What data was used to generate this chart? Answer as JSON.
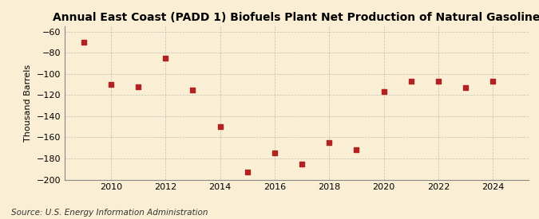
{
  "title": "Annual East Coast (PADD 1) Biofuels Plant Net Production of Natural Gasoline",
  "ylabel": "Thousand Barrels",
  "source": "Source: U.S. Energy Information Administration",
  "years": [
    2009,
    2010,
    2011,
    2012,
    2013,
    2014,
    2015,
    2016,
    2017,
    2018,
    2019,
    2020,
    2021,
    2022,
    2023,
    2024
  ],
  "values": [
    -70,
    -110,
    -112,
    -85,
    -115,
    -150,
    -193,
    -175,
    -185,
    -165,
    -172,
    -117,
    -107,
    -107,
    -113,
    -107
  ],
  "marker_color": "#b22222",
  "marker_size": 4,
  "background_color": "#faefd4",
  "grid_color": "#aaaaaa",
  "ylim": [
    -200,
    -55
  ],
  "yticks": [
    -200,
    -180,
    -160,
    -140,
    -120,
    -100,
    -80,
    -60
  ],
  "xlim": [
    2008.3,
    2025.3
  ],
  "xticks": [
    2010,
    2012,
    2014,
    2016,
    2018,
    2020,
    2022,
    2024
  ],
  "title_fontsize": 10,
  "label_fontsize": 8,
  "tick_fontsize": 8,
  "source_fontsize": 7.5
}
